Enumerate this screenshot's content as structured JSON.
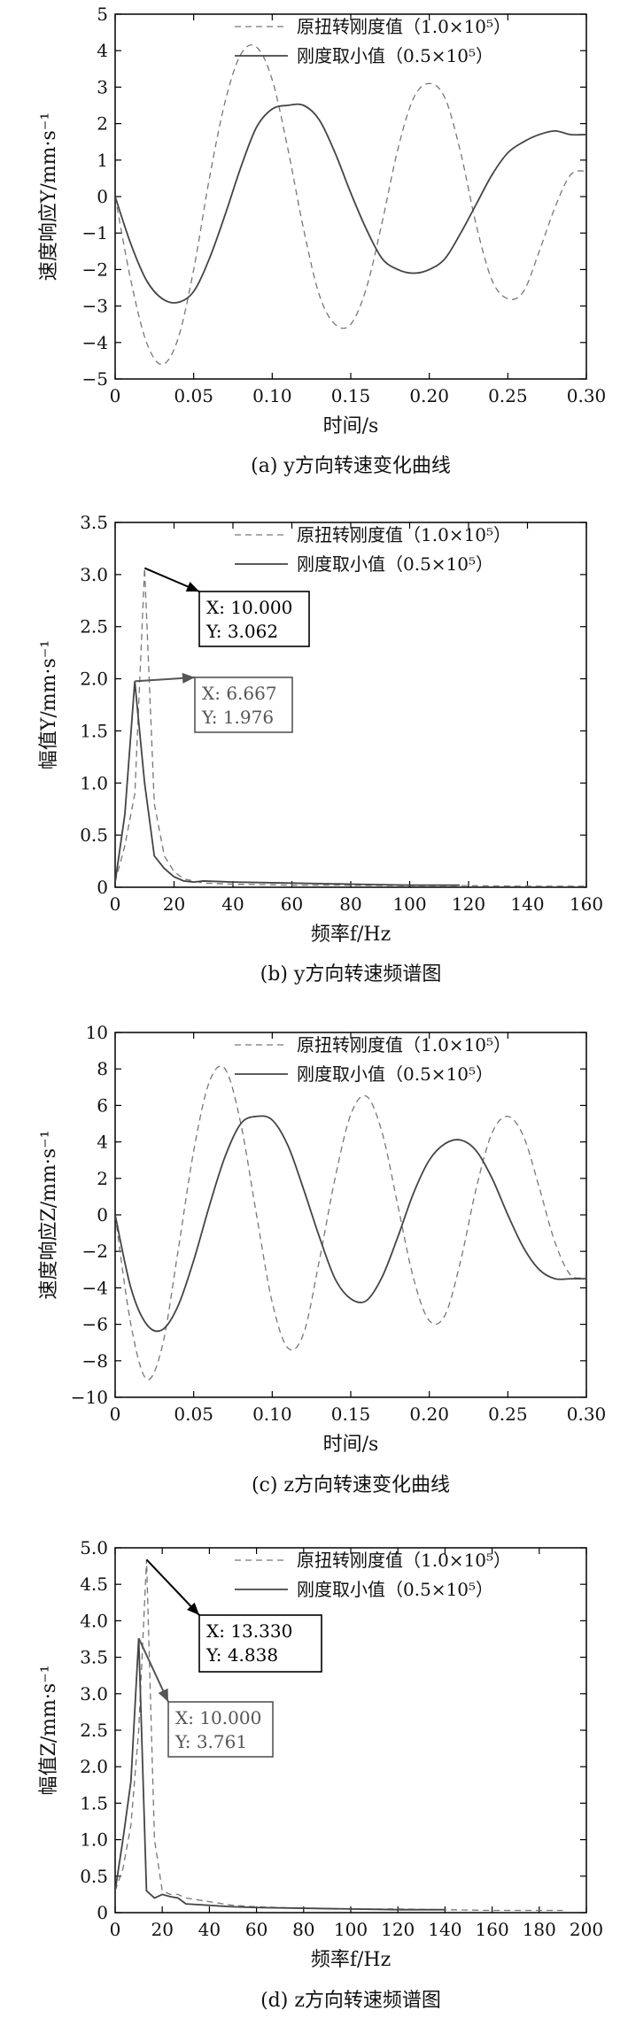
{
  "chart_data": [
    {
      "id": "a",
      "type": "line",
      "caption": "(a) y方向转速变化曲线",
      "xlabel": "时间/s",
      "ylabel": "速度响应Y/mm·s⁻¹",
      "xlim": [
        0,
        0.3
      ],
      "ylim": [
        -5,
        5
      ],
      "xticks": [
        "0",
        "0.05",
        "0.10",
        "0.15",
        "0.20",
        "0.25",
        "0.30"
      ],
      "yticks": [
        "−5",
        "−4",
        "−3",
        "−2",
        "−1",
        "0",
        "1",
        "2",
        "3",
        "4",
        "5"
      ],
      "legend_position": "top-right",
      "series": [
        {
          "name": "原扭转刚度值（1.0×10⁵）",
          "style": "dashed",
          "color": "#777777",
          "x": [
            0,
            0.01,
            0.02,
            0.03,
            0.04,
            0.05,
            0.06,
            0.07,
            0.08,
            0.09,
            0.1,
            0.11,
            0.12,
            0.13,
            0.14,
            0.15,
            0.16,
            0.17,
            0.18,
            0.19,
            0.2,
            0.21,
            0.22,
            0.23,
            0.24,
            0.25,
            0.26,
            0.27,
            0.28,
            0.29,
            0.3
          ],
          "y": [
            0,
            -2.3,
            -4.0,
            -4.6,
            -3.9,
            -2.0,
            0.5,
            2.6,
            3.9,
            4.1,
            3.2,
            1.3,
            -0.9,
            -2.7,
            -3.5,
            -3.5,
            -2.5,
            -0.7,
            1.3,
            2.7,
            3.1,
            2.7,
            1.2,
            -0.8,
            -2.3,
            -2.8,
            -2.6,
            -1.5,
            -0.3,
            0.6,
            0.7
          ]
        },
        {
          "name": "刚度取小值（0.5×10⁵）",
          "style": "solid",
          "color": "#444444",
          "x": [
            0,
            0.01,
            0.02,
            0.03,
            0.04,
            0.05,
            0.06,
            0.07,
            0.08,
            0.09,
            0.1,
            0.11,
            0.12,
            0.13,
            0.14,
            0.15,
            0.16,
            0.17,
            0.18,
            0.19,
            0.2,
            0.21,
            0.22,
            0.23,
            0.24,
            0.25,
            0.26,
            0.27,
            0.28,
            0.29,
            0.3
          ],
          "y": [
            0,
            -1.3,
            -2.3,
            -2.8,
            -2.9,
            -2.6,
            -1.7,
            -0.5,
            0.8,
            1.9,
            2.4,
            2.5,
            2.5,
            2.1,
            1.2,
            0.1,
            -0.9,
            -1.7,
            -2.0,
            -2.1,
            -2.0,
            -1.7,
            -1.0,
            -0.2,
            0.6,
            1.2,
            1.5,
            1.7,
            1.8,
            1.7,
            1.7
          ]
        }
      ]
    },
    {
      "id": "b",
      "type": "line",
      "caption": "(b) y方向转速频谱图",
      "xlabel": "频率f/Hz",
      "ylabel": "幅值Y/mm·s⁻¹",
      "xlim": [
        0,
        160
      ],
      "ylim": [
        0,
        3.5
      ],
      "xticks": [
        "0",
        "20",
        "40",
        "60",
        "80",
        "100",
        "120",
        "140",
        "160"
      ],
      "yticks": [
        "0",
        "0.5",
        "1.0",
        "1.5",
        "2.0",
        "2.5",
        "3.0",
        "3.5"
      ],
      "legend_position": "top-right",
      "series": [
        {
          "name": "原扭转刚度值（1.0×10⁵）",
          "style": "dashed",
          "color": "#777777",
          "x": [
            0,
            3.3,
            6.7,
            10,
            13.3,
            16.7,
            20,
            23.3,
            26.7,
            30,
            40,
            60,
            80,
            100,
            120,
            140,
            150,
            160
          ],
          "y": [
            0.05,
            0.4,
            0.9,
            3.062,
            0.8,
            0.3,
            0.15,
            0.08,
            0.06,
            0.04,
            0.03,
            0.02,
            0.02,
            0.015,
            0.015,
            0.01,
            0.01,
            0.01
          ]
        },
        {
          "name": "刚度取小值（0.5×10⁵）",
          "style": "solid",
          "color": "#444444",
          "x": [
            0,
            3.3,
            6.667,
            10,
            13.3,
            16.7,
            20,
            23.3,
            26.7,
            30,
            40,
            60,
            80,
            100,
            117
          ],
          "y": [
            0.05,
            0.7,
            1.976,
            1.0,
            0.3,
            0.18,
            0.1,
            0.06,
            0.05,
            0.06,
            0.05,
            0.04,
            0.03,
            0.02,
            0.02
          ]
        }
      ],
      "annotations": [
        {
          "x_label": "X: 10.000",
          "y_label": "Y: 3.062",
          "x": 10,
          "y": 3.062,
          "color": "#000000"
        },
        {
          "x_label": "X: 6.667",
          "y_label": "Y: 1.976",
          "x": 6.667,
          "y": 1.976,
          "color": "#555555"
        }
      ]
    },
    {
      "id": "c",
      "type": "line",
      "caption": "(c) z方向转速变化曲线",
      "xlabel": "时间/s",
      "ylabel": "速度响应Z/mm·s⁻¹",
      "xlim": [
        0,
        0.3
      ],
      "ylim": [
        -10,
        10
      ],
      "xticks": [
        "0",
        "0.05",
        "0.10",
        "0.15",
        "0.20",
        "0.25",
        "0.30"
      ],
      "yticks": [
        "−10",
        "−8",
        "−6",
        "−4",
        "−2",
        "0",
        "2",
        "4",
        "6",
        "8",
        "10"
      ],
      "legend_position": "top-right",
      "series": [
        {
          "name": "原扭转刚度值（1.0×10⁵）",
          "style": "dashed",
          "color": "#777777",
          "x": [
            0,
            0.01,
            0.02,
            0.03,
            0.04,
            0.05,
            0.06,
            0.07,
            0.08,
            0.09,
            0.1,
            0.11,
            0.12,
            0.13,
            0.14,
            0.15,
            0.16,
            0.17,
            0.18,
            0.19,
            0.2,
            0.21,
            0.22,
            0.23,
            0.24,
            0.25,
            0.26,
            0.27,
            0.28,
            0.29,
            0.3
          ],
          "y": [
            0,
            -6.0,
            -9.0,
            -7.2,
            -2.0,
            3.5,
            7.3,
            8.0,
            5.0,
            0,
            -4.8,
            -7.3,
            -6.5,
            -2.5,
            2.0,
            5.5,
            6.5,
            4.5,
            0.5,
            -3.5,
            -5.8,
            -5.5,
            -2.5,
            1.5,
            4.5,
            5.4,
            4.3,
            1.5,
            -1.5,
            -3.3,
            -3.4
          ]
        },
        {
          "name": "刚度取小值（0.5×10⁵）",
          "style": "solid",
          "color": "#444444",
          "x": [
            0,
            0.01,
            0.02,
            0.03,
            0.04,
            0.05,
            0.06,
            0.07,
            0.08,
            0.09,
            0.1,
            0.11,
            0.12,
            0.13,
            0.14,
            0.15,
            0.16,
            0.17,
            0.18,
            0.19,
            0.2,
            0.21,
            0.22,
            0.23,
            0.24,
            0.25,
            0.26,
            0.27,
            0.28,
            0.29,
            0.3
          ],
          "y": [
            0,
            -4.0,
            -6.0,
            -6.3,
            -5.0,
            -2.5,
            0.5,
            3.2,
            5.0,
            5.4,
            5.2,
            3.8,
            1.4,
            -1.2,
            -3.5,
            -4.6,
            -4.7,
            -3.4,
            -1.2,
            1.2,
            3.0,
            3.9,
            4.1,
            3.5,
            2.0,
            0,
            -1.8,
            -3.0,
            -3.5,
            -3.5,
            -3.5
          ]
        }
      ]
    },
    {
      "id": "d",
      "type": "line",
      "caption": "(d) z方向转速频谱图",
      "xlabel": "频率f/Hz",
      "ylabel": "幅值Z/mm·s⁻¹",
      "xlim": [
        0,
        200
      ],
      "ylim": [
        0,
        5.0
      ],
      "xticks": [
        "0",
        "20",
        "40",
        "60",
        "80",
        "100",
        "120",
        "140",
        "160",
        "180",
        "200"
      ],
      "yticks": [
        "0",
        "0.5",
        "1.0",
        "1.5",
        "2.0",
        "2.5",
        "3.0",
        "3.5",
        "4.0",
        "4.5",
        "5.0"
      ],
      "legend_position": "top-right",
      "series": [
        {
          "name": "原扭转刚度值（1.0×10⁵）",
          "style": "dashed",
          "color": "#777777",
          "x": [
            0,
            3.3,
            6.7,
            10,
            13.33,
            16.7,
            20,
            23.3,
            26.7,
            30,
            40,
            50,
            60,
            80,
            100,
            120,
            140,
            160,
            180,
            190
          ],
          "y": [
            0.3,
            0.6,
            1.2,
            2.5,
            4.838,
            1.0,
            0.3,
            0.25,
            0.25,
            0.2,
            0.15,
            0.1,
            0.08,
            0.06,
            0.05,
            0.05,
            0.04,
            0.03,
            0.03,
            0.03
          ]
        },
        {
          "name": "刚度取小值（0.5×10⁵）",
          "style": "solid",
          "color": "#444444",
          "x": [
            0,
            3.3,
            6.7,
            10,
            13.3,
            16.7,
            20,
            23.3,
            26.7,
            30,
            40,
            50,
            60,
            80,
            100,
            120,
            140
          ],
          "y": [
            0.3,
            1.0,
            1.8,
            3.761,
            0.3,
            0.2,
            0.25,
            0.22,
            0.2,
            0.12,
            0.1,
            0.08,
            0.07,
            0.06,
            0.05,
            0.04,
            0.04
          ]
        }
      ],
      "annotations": [
        {
          "x_label": "X: 13.330",
          "y_label": "Y: 4.838",
          "x": 13.33,
          "y": 4.838,
          "color": "#000000"
        },
        {
          "x_label": "X: 10.000",
          "y_label": "Y: 3.761",
          "x": 10,
          "y": 3.761,
          "color": "#555555"
        }
      ]
    }
  ]
}
